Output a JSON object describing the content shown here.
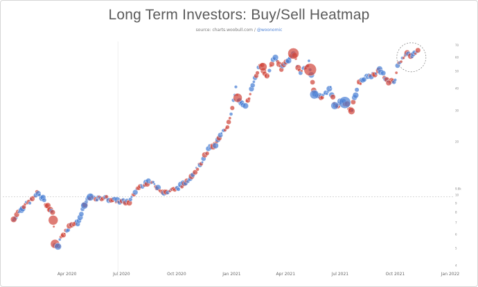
{
  "chart_data": {
    "type": "scatter",
    "title": "Long Term Investors: Buy/Sell Heatmap",
    "source_prefix": "source: ",
    "source_site": "charts.woobull.com",
    "source_sep": " / ",
    "source_handle": "@woonomic",
    "xlabel": "",
    "ylabel": "",
    "log_scale_y": true,
    "grid": false,
    "x_ticks": [
      "Apr 2020",
      "Jul 2020",
      "Oct 2020",
      "Jan 2021",
      "Apr 2021",
      "Jul 2021",
      "Oct 2021",
      "Jan 2022"
    ],
    "xlim": [
      "2020-01-01",
      "2022-01-01"
    ],
    "ylim": [
      4000,
      75000
    ],
    "y_tick_values": [
      4000,
      5000,
      6000,
      7000,
      8000,
      9000,
      10000,
      20000,
      30000,
      40000,
      50000,
      60000,
      70000
    ],
    "y_ticks": [
      "4",
      "5",
      "6",
      "7",
      "8",
      "9",
      "10",
      "20",
      "30",
      "40",
      "50",
      "60",
      "70"
    ],
    "reference_line": {
      "value": 9800,
      "label": "9.8k"
    },
    "highlight": {
      "date": "2021-10-28",
      "value": 60000,
      "style": "dashed circle"
    },
    "colors": {
      "buy": "#4a7fd4",
      "sell": "#d0453a",
      "title": "#5a5a5a"
    },
    "series": [
      {
        "name": "Buy",
        "color": "#4a7fd4"
      },
      {
        "name": "Sell",
        "color": "#d0453a"
      }
    ],
    "price_path": [
      [
        "2020-01-02",
        7200
      ],
      [
        "2020-01-10",
        8000
      ],
      [
        "2020-01-20",
        8700
      ],
      [
        "2020-02-01",
        9300
      ],
      [
        "2020-02-12",
        10300
      ],
      [
        "2020-02-20",
        9600
      ],
      [
        "2020-02-28",
        8700
      ],
      [
        "2020-03-08",
        8000
      ],
      [
        "2020-03-12",
        5300
      ],
      [
        "2020-03-16",
        5000
      ],
      [
        "2020-03-22",
        5800
      ],
      [
        "2020-04-01",
        6400
      ],
      [
        "2020-04-10",
        6900
      ],
      [
        "2020-04-20",
        7000
      ],
      [
        "2020-04-29",
        8600
      ],
      [
        "2020-05-08",
        9800
      ],
      [
        "2020-05-20",
        9500
      ],
      [
        "2020-06-01",
        9700
      ],
      [
        "2020-06-15",
        9400
      ],
      [
        "2020-07-01",
        9200
      ],
      [
        "2020-07-15",
        9200
      ],
      [
        "2020-07-27",
        10900
      ],
      [
        "2020-08-10",
        11700
      ],
      [
        "2020-08-20",
        11800
      ],
      [
        "2020-09-03",
        10800
      ],
      [
        "2020-09-10",
        10300
      ],
      [
        "2020-09-25",
        10700
      ],
      [
        "2020-10-10",
        11300
      ],
      [
        "2020-10-20",
        12200
      ],
      [
        "2020-11-01",
        13700
      ],
      [
        "2020-11-15",
        16000
      ],
      [
        "2020-11-25",
        18600
      ],
      [
        "2020-12-05",
        19200
      ],
      [
        "2020-12-17",
        22800
      ],
      [
        "2020-12-25",
        24600
      ],
      [
        "2021-01-02",
        31000
      ],
      [
        "2021-01-08",
        40000
      ],
      [
        "2021-01-12",
        34000
      ],
      [
        "2021-01-22",
        32000
      ],
      [
        "2021-01-30",
        34300
      ],
      [
        "2021-02-08",
        46000
      ],
      [
        "2021-02-20",
        56000
      ],
      [
        "2021-02-28",
        45000
      ],
      [
        "2021-03-13",
        60000
      ],
      [
        "2021-03-25",
        52000
      ],
      [
        "2021-04-05",
        58000
      ],
      [
        "2021-04-14",
        63000
      ],
      [
        "2021-04-25",
        49000
      ],
      [
        "2021-05-10",
        56000
      ],
      [
        "2021-05-19",
        37000
      ],
      [
        "2021-06-01",
        36000
      ],
      [
        "2021-06-15",
        40000
      ],
      [
        "2021-06-22",
        32000
      ],
      [
        "2021-07-07",
        34000
      ],
      [
        "2021-07-20",
        29800
      ],
      [
        "2021-07-31",
        42000
      ],
      [
        "2021-08-14",
        47000
      ],
      [
        "2021-08-25",
        48000
      ],
      [
        "2021-09-06",
        51000
      ],
      [
        "2021-09-20",
        43000
      ],
      [
        "2021-09-30",
        43800
      ],
      [
        "2021-10-06",
        55000
      ],
      [
        "2021-10-20",
        64000
      ],
      [
        "2021-10-28",
        60000
      ],
      [
        "2021-11-08",
        67000
      ]
    ]
  }
}
